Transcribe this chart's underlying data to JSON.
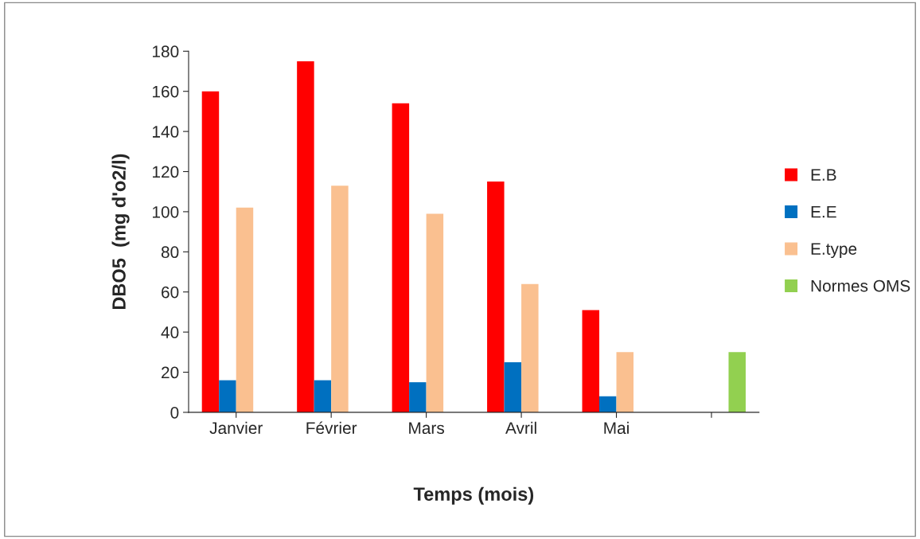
{
  "chart_data": {
    "type": "bar",
    "xlabel": "Temps (mois)",
    "ylabel": "DBO5  (mg d'o2/l)",
    "categories": [
      "Janvier",
      "Février",
      "Mars",
      "Avril",
      "Mai",
      null
    ],
    "series": [
      {
        "name": "E.B",
        "color": "#ff0000",
        "values": [
          160,
          175,
          154,
          115,
          51,
          null
        ]
      },
      {
        "name": "E.E",
        "color": "#0070c0",
        "values": [
          16,
          16,
          15,
          25,
          8,
          null
        ]
      },
      {
        "name": "E.type",
        "color": "#fac090",
        "values": [
          102,
          113,
          99,
          64,
          30,
          null
        ]
      },
      {
        "name": "Normes OMS",
        "color": "#92d050",
        "values": [
          null,
          null,
          null,
          null,
          null,
          30
        ]
      }
    ],
    "ylim": [
      0,
      180
    ],
    "yticks": [
      0,
      20,
      40,
      60,
      80,
      100,
      120,
      140,
      160,
      180
    ],
    "grid": false,
    "legend": "right"
  }
}
